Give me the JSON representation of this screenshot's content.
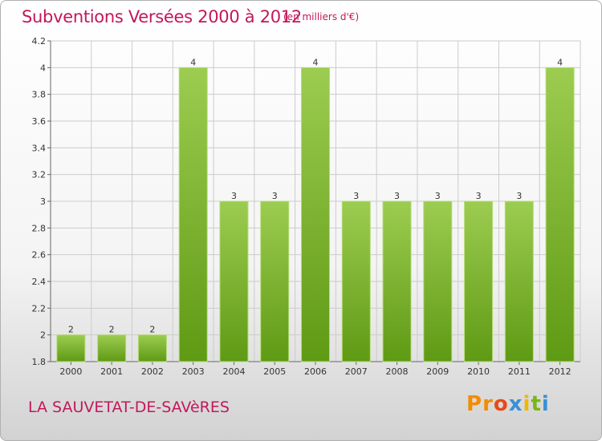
{
  "title": "Subventions Versées 2000 à 2012",
  "subtitle": "(en milliers d'€)",
  "commune": "LA SAUVETAT-DE-SAVèRES",
  "logo": "Proxiti",
  "colors": {
    "accent": "#c2185b",
    "bar_top": "#9ccc50",
    "bar_bottom": "#5f9a14",
    "grid": "#cccccc"
  },
  "chart_data": {
    "type": "bar",
    "title": "Subventions Versées 2000 à 2012",
    "subtitle": "(en milliers d'€)",
    "xlabel": "",
    "ylabel": "",
    "categories": [
      "2000",
      "2001",
      "2002",
      "2003",
      "2004",
      "2005",
      "2006",
      "2007",
      "2008",
      "2009",
      "2010",
      "2011",
      "2012"
    ],
    "values": [
      2,
      2,
      2,
      4,
      3,
      3,
      4,
      3,
      3,
      3,
      3,
      3,
      4
    ],
    "data_labels": [
      "2",
      "2",
      "2",
      "4",
      "3",
      "3",
      "4",
      "3",
      "3",
      "3",
      "3",
      "3",
      "4"
    ],
    "ylim": [
      1.8,
      4.2
    ],
    "yticks": [
      1.8,
      2,
      2.2,
      2.4,
      2.6,
      2.8,
      3,
      3.2,
      3.4,
      3.6,
      3.8,
      4,
      4.2
    ],
    "ytick_labels": [
      "1.8",
      "2",
      "2.2",
      "2.4",
      "2.6",
      "2.8",
      "3",
      "3.2",
      "3.4",
      "3.6",
      "3.8",
      "4",
      "4.2"
    ],
    "grid": true,
    "legend": "none"
  }
}
